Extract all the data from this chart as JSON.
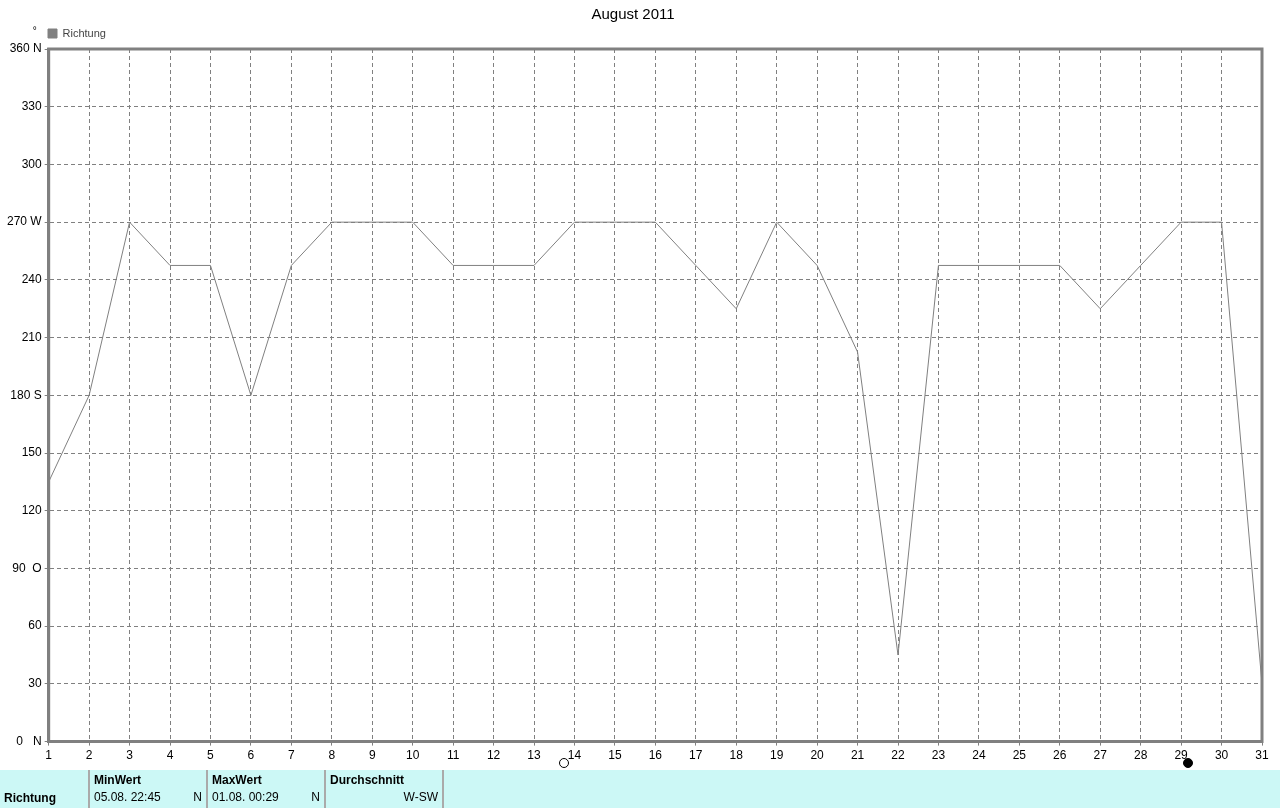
{
  "chart_data": {
    "type": "line",
    "title": "August 2011",
    "ylabel": "°",
    "x": [
      1,
      2,
      3,
      4,
      5,
      6,
      7,
      8,
      9,
      10,
      11,
      12,
      13,
      14,
      15,
      16,
      17,
      18,
      19,
      20,
      21,
      22,
      23,
      24,
      25,
      26,
      27,
      28,
      29,
      30,
      31
    ],
    "series": [
      {
        "name": "Richtung",
        "color": "#808080",
        "values": [
          135,
          180,
          270,
          247.5,
          247.5,
          180,
          247.5,
          270,
          270,
          270,
          247.5,
          247.5,
          247.5,
          270,
          270,
          270,
          247.5,
          225,
          270,
          247.5,
          202.5,
          45,
          247.5,
          247.5,
          247.5,
          247.5,
          225,
          247.5,
          270,
          270,
          30
        ]
      }
    ],
    "xlim": [
      1,
      31
    ],
    "xticks": [
      1,
      2,
      3,
      4,
      5,
      6,
      7,
      8,
      9,
      10,
      11,
      12,
      13,
      14,
      15,
      16,
      17,
      18,
      19,
      20,
      21,
      22,
      23,
      24,
      25,
      26,
      27,
      28,
      29,
      30,
      31
    ],
    "ylim": [
      0,
      360
    ],
    "yticks": [
      {
        "value": 0,
        "label": "0   N"
      },
      30,
      60,
      {
        "value": 90,
        "label": "90  O"
      },
      120,
      150,
      {
        "value": 180,
        "label": "180 S"
      },
      210,
      240,
      {
        "value": 270,
        "label": "270 W"
      },
      300,
      330,
      {
        "value": 360,
        "label": "360 N"
      }
    ],
    "grid": true,
    "legend": "top left",
    "marker": "none",
    "line_style": "solid",
    "annotations": [
      "Richtung",
      "MinWert",
      "05.08.  22:45",
      "N",
      "MaxWert",
      "01.08.  00:29",
      "N",
      "Durchschnitt",
      "W-SW"
    ]
  }
}
